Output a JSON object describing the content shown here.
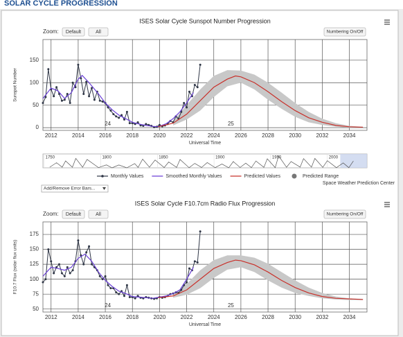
{
  "page_title": "SOLAR CYCLE PROGRESSION",
  "chart_data": [
    {
      "type": "line",
      "title": "ISES Solar Cycle Sunspot Number Progression",
      "zoom_label": "Zoom:",
      "zoom_buttons": [
        "Default",
        "All"
      ],
      "toggle_button": "Numbering On/Off",
      "ylabel": "Sunspot Number",
      "xlabel": "Universal Time",
      "annotations": [
        "24",
        "25"
      ],
      "grid": true,
      "xlim": [
        2011.4,
        2035.3
      ],
      "xticks": [
        2012,
        2014,
        2016,
        2018,
        2020,
        2022,
        2024,
        2026,
        2028,
        2030,
        2032,
        2034
      ],
      "ylim": [
        -6,
        196
      ],
      "yticks": [
        0,
        50,
        100,
        150
      ],
      "series": [
        {
          "name": "Monthly Values",
          "color": "#2f3646",
          "markers": true,
          "x": [
            2011.4,
            2011.6,
            2011.8,
            2012.0,
            2012.2,
            2012.4,
            2012.6,
            2012.8,
            2013.0,
            2013.2,
            2013.4,
            2013.6,
            2013.8,
            2014.0,
            2014.2,
            2014.4,
            2014.6,
            2014.8,
            2015.0,
            2015.2,
            2015.4,
            2015.6,
            2015.8,
            2016.0,
            2016.2,
            2016.4,
            2016.6,
            2016.8,
            2017.0,
            2017.2,
            2017.4,
            2017.6,
            2017.8,
            2018.0,
            2018.2,
            2018.4,
            2018.6,
            2018.8,
            2019.0,
            2019.2,
            2019.4,
            2019.6,
            2019.8,
            2020.0,
            2020.2,
            2020.4,
            2020.6,
            2020.8,
            2021.0,
            2021.2,
            2021.4,
            2021.6,
            2021.8,
            2022.0,
            2022.2,
            2022.4,
            2022.6,
            2022.8,
            2023.0
          ],
          "values": [
            55,
            68,
            130,
            85,
            70,
            90,
            75,
            60,
            62,
            75,
            55,
            100,
            90,
            140,
            110,
            75,
            102,
            70,
            88,
            62,
            80,
            60,
            58,
            55,
            45,
            38,
            30,
            25,
            22,
            28,
            18,
            35,
            10,
            10,
            8,
            12,
            5,
            4,
            8,
            6,
            4,
            1,
            2,
            6,
            3,
            5,
            8,
            15,
            12,
            25,
            20,
            35,
            55,
            45,
            80,
            70,
            95,
            90,
            140
          ]
        },
        {
          "name": "Smoothed Monthly Values",
          "color": "#6a3fd6",
          "x": [
            2011.4,
            2012.0,
            2012.5,
            2013.0,
            2013.5,
            2014.0,
            2014.3,
            2014.8,
            2015.5,
            2016.0,
            2016.5,
            2017.0,
            2017.5,
            2018.0,
            2018.5,
            2019.0,
            2019.5,
            2019.9,
            2020.5,
            2021.0,
            2021.5,
            2022.0,
            2022.5
          ],
          "values": [
            65,
            88,
            82,
            65,
            78,
            108,
            116,
            100,
            75,
            55,
            40,
            28,
            20,
            12,
            8,
            5,
            3,
            2,
            9,
            20,
            35,
            55,
            78
          ]
        },
        {
          "name": "Predicted Values",
          "color": "#c8312b",
          "x": [
            2019.9,
            2021,
            2022,
            2023,
            2024,
            2025,
            2025.6,
            2026,
            2027,
            2028,
            2029,
            2030,
            2031,
            2032,
            2033,
            2034,
            2035
          ],
          "values": [
            2,
            10,
            30,
            60,
            90,
            108,
            115,
            113,
            100,
            80,
            58,
            38,
            22,
            12,
            5,
            2,
            1
          ]
        },
        {
          "name": "Predicted Range",
          "color": "#c8c8c8",
          "x": [
            2021,
            2022,
            2023,
            2024,
            2025,
            2026,
            2027,
            2028,
            2029,
            2030,
            2031,
            2032,
            2033,
            2034,
            2035
          ],
          "high": [
            15,
            50,
            85,
            115,
            128,
            127,
            118,
            100,
            78,
            55,
            35,
            20,
            10,
            4,
            2
          ],
          "low": [
            5,
            18,
            38,
            68,
            92,
            100,
            85,
            62,
            42,
            24,
            12,
            6,
            2,
            0,
            0
          ]
        }
      ],
      "navigator": {
        "xlim": [
          1749,
          2035
        ],
        "ylim": [
          0,
          210
        ],
        "xticks": [
          1750,
          1800,
          1850,
          1900,
          1950,
          2000
        ],
        "x": [
          1755,
          1761,
          1766,
          1769,
          1775,
          1778,
          1784,
          1788,
          1798,
          1805,
          1810,
          1816,
          1823,
          1830,
          1833,
          1837,
          1843,
          1848,
          1856,
          1860,
          1867,
          1870,
          1878,
          1883,
          1889,
          1894,
          1901,
          1907,
          1913,
          1917,
          1923,
          1928,
          1933,
          1937,
          1944,
          1947,
          1954,
          1957,
          1964,
          1968,
          1976,
          1979,
          1986,
          1989,
          1996,
          2000,
          2008,
          2014,
          2019,
          2023
        ],
        "values": [
          10,
          86,
          11,
          116,
          10,
          158,
          10,
          141,
          4,
          49,
          0,
          48,
          0,
          71,
          7,
          146,
          11,
          131,
          4,
          98,
          7,
          140,
          2,
          74,
          6,
          88,
          3,
          64,
          1,
          105,
          6,
          78,
          4,
          114,
          8,
          152,
          3,
          201,
          10,
          106,
          12,
          155,
          12,
          158,
          8,
          120,
          2,
          82,
          2,
          115
        ]
      },
      "credit": "Space Weather Prediction Center",
      "dropdown": "Add/Remove Error Bars..."
    },
    {
      "type": "line",
      "title": "ISES Solar Cycle F10.7cm Radio Flux Progression",
      "zoom_label": "Zoom:",
      "zoom_buttons": [
        "Default",
        "All"
      ],
      "toggle_button": "Numbering On/Off",
      "ylabel": "F10.7 Flux (solar flux units)",
      "xlabel": "Universal Time",
      "annotations": [
        "24",
        "25"
      ],
      "grid": true,
      "xlim": [
        2011.4,
        2035.3
      ],
      "xticks": [
        2012,
        2014,
        2016,
        2018,
        2020,
        2022,
        2024,
        2026,
        2028,
        2030,
        2032,
        2034
      ],
      "ylim": [
        45,
        196
      ],
      "yticks": [
        50,
        75,
        100,
        125,
        150,
        175
      ],
      "series": [
        {
          "color": "#2f3646",
          "markers": true,
          "x": [
            2011.4,
            2011.6,
            2011.8,
            2012.0,
            2012.2,
            2012.4,
            2012.6,
            2012.8,
            2013.0,
            2013.2,
            2013.4,
            2013.6,
            2013.8,
            2014.0,
            2014.2,
            2014.4,
            2014.6,
            2014.8,
            2015.0,
            2015.2,
            2015.4,
            2015.6,
            2015.8,
            2016.0,
            2016.2,
            2016.4,
            2016.6,
            2016.8,
            2017.0,
            2017.2,
            2017.4,
            2017.6,
            2017.8,
            2018.0,
            2018.2,
            2018.4,
            2018.6,
            2018.8,
            2019.0,
            2019.2,
            2019.4,
            2019.6,
            2019.8,
            2020.0,
            2020.2,
            2020.4,
            2020.6,
            2020.8,
            2021.0,
            2021.2,
            2021.4,
            2021.6,
            2021.8,
            2022.0,
            2022.2,
            2022.4,
            2022.6,
            2022.8,
            2023.0
          ],
          "values": [
            95,
            100,
            150,
            130,
            110,
            120,
            125,
            110,
            105,
            120,
            110,
            115,
            130,
            165,
            140,
            125,
            145,
            155,
            125,
            120,
            115,
            105,
            100,
            105,
            90,
            85,
            85,
            78,
            75,
            80,
            72,
            90,
            70,
            70,
            68,
            72,
            69,
            68,
            70,
            69,
            68,
            67,
            68,
            70,
            69,
            70,
            72,
            75,
            76,
            78,
            77,
            82,
            90,
            95,
            118,
            115,
            130,
            128,
            180
          ]
        },
        {
          "color": "#6a3fd6",
          "x": [
            2011.4,
            2012.0,
            2012.5,
            2013.0,
            2013.5,
            2014.0,
            2014.5,
            2015.0,
            2015.5,
            2016.0,
            2016.5,
            2017.0,
            2017.5,
            2018.0,
            2018.5,
            2019.0,
            2019.5,
            2020.0,
            2020.5,
            2021.0,
            2021.5,
            2022.0,
            2022.5
          ],
          "values": [
            105,
            120,
            118,
            115,
            120,
            135,
            142,
            130,
            112,
            98,
            88,
            80,
            76,
            71,
            70,
            69,
            68,
            70,
            72,
            76,
            82,
            100,
            120
          ]
        },
        {
          "color": "#c8312b",
          "x": [
            2019.9,
            2021,
            2022,
            2023,
            2024,
            2025,
            2025.6,
            2026,
            2027,
            2028,
            2029,
            2030,
            2031,
            2032,
            2033,
            2034,
            2035
          ],
          "values": [
            69,
            72,
            82,
            100,
            118,
            128,
            132,
            131,
            124,
            112,
            98,
            86,
            77,
            71,
            68,
            67,
            66
          ]
        },
        {
          "color": "#c8c8c8",
          "x": [
            2021,
            2022,
            2023,
            2024,
            2025,
            2026,
            2027,
            2028,
            2029,
            2030,
            2031,
            2032,
            2033,
            2034,
            2035
          ],
          "high": [
            75,
            92,
            115,
            132,
            140,
            140,
            136,
            126,
            112,
            98,
            86,
            77,
            71,
            68,
            67
          ],
          "low": [
            69,
            74,
            85,
            102,
            116,
            120,
            112,
            98,
            86,
            77,
            72,
            68,
            66,
            65,
            65
          ]
        }
      ]
    }
  ]
}
